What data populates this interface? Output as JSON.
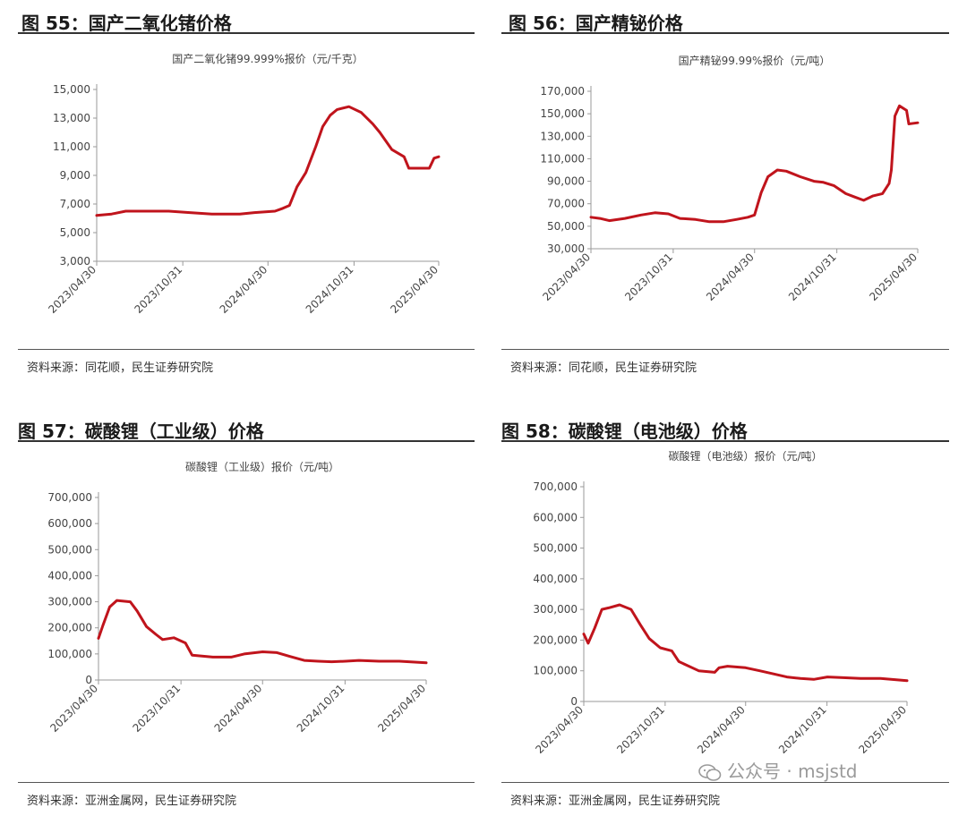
{
  "watermark": {
    "text": "公众号 · msjstd"
  },
  "colors": {
    "line": "#c0141c",
    "axis": "#9a9a9a"
  },
  "panels": [
    {
      "fig_title": "图 55：国产二氧化锗价格",
      "source": "资料来源：同花顺，民生证券研究院",
      "chart_data": {
        "type": "line",
        "title": "国产二氧化锗99.999%报价（元/千克）",
        "xlabel": "",
        "ylabel": "",
        "ylim": [
          3000,
          15000
        ],
        "yticks": [
          3000,
          5000,
          7000,
          9000,
          11000,
          13000,
          15000
        ],
        "ytick_labels": [
          "3,000",
          "5,000",
          "7,000",
          "9,000",
          "11,000",
          "13,000",
          "15,000"
        ],
        "xticks": [
          "2023-04-30",
          "2023-10-31",
          "2024-04-30",
          "2024-10-31",
          "2025-04-30"
        ],
        "xtick_labels": [
          "2023/04/30",
          "2023/10/31",
          "2024/04/30",
          "2024/10/31",
          "2025/04/30"
        ],
        "xlim": [
          "2023-04-30",
          "2025-04-30"
        ],
        "grid": false,
        "series": [
          {
            "x": [
              "2023-04-30",
              "2023-06-01",
              "2023-07-01",
              "2023-08-01",
              "2023-10-01",
              "2023-11-15",
              "2024-01-01",
              "2024-03-01",
              "2024-04-01",
              "2024-05-15",
              "2024-06-01",
              "2024-06-15",
              "2024-07-01",
              "2024-07-20",
              "2024-08-10",
              "2024-08-25",
              "2024-09-10",
              "2024-09-25",
              "2024-10-20",
              "2024-11-15",
              "2024-12-10",
              "2024-12-25",
              "2025-01-20",
              "2025-02-15",
              "2025-02-25",
              "2025-04-10",
              "2025-04-20",
              "2025-04-30"
            ],
            "y": [
              6200,
              6300,
              6500,
              6500,
              6500,
              6400,
              6300,
              6300,
              6400,
              6500,
              6700,
              6900,
              8200,
              9200,
              11000,
              12400,
              13200,
              13600,
              13800,
              13400,
              12600,
              12000,
              10800,
              10300,
              9500,
              9500,
              10200,
              10300
            ]
          }
        ]
      }
    },
    {
      "fig_title": "图 56：国产精铋价格",
      "source": "资料来源：同花顺，民生证券研究院",
      "chart_data": {
        "type": "line",
        "title": "国产精铋99.99%报价（元/吨）",
        "xlabel": "",
        "ylabel": "",
        "ylim": [
          30000,
          170000
        ],
        "yticks": [
          30000,
          50000,
          70000,
          90000,
          110000,
          130000,
          150000,
          170000
        ],
        "ytick_labels": [
          "30,000",
          "50,000",
          "70,000",
          "90,000",
          "110,000",
          "130,000",
          "150,000",
          "170,000"
        ],
        "xticks": [
          "2023-04-30",
          "2023-10-31",
          "2024-04-30",
          "2024-10-31",
          "2025-04-30"
        ],
        "xtick_labels": [
          "2023/04/30",
          "2023/10/31",
          "2024/04/30",
          "2024/10/31",
          "2025/04/30"
        ],
        "xlim": [
          "2023-04-30",
          "2025-04-30"
        ],
        "grid": false,
        "series": [
          {
            "x": [
              "2023-04-30",
              "2023-05-20",
              "2023-06-10",
              "2023-07-15",
              "2023-08-20",
              "2023-09-20",
              "2023-10-20",
              "2023-11-15",
              "2023-12-20",
              "2024-01-20",
              "2024-02-20",
              "2024-03-20",
              "2024-04-15",
              "2024-04-30",
              "2024-05-15",
              "2024-05-30",
              "2024-06-20",
              "2024-07-10",
              "2024-08-10",
              "2024-09-10",
              "2024-10-01",
              "2024-10-25",
              "2024-11-20",
              "2024-12-10",
              "2024-12-30",
              "2025-01-20",
              "2025-02-10",
              "2025-02-25",
              "2025-03-02",
              "2025-03-10",
              "2025-03-20",
              "2025-04-05",
              "2025-04-10",
              "2025-04-30"
            ],
            "y": [
              58000,
              57000,
              55000,
              57000,
              60000,
              62000,
              61000,
              57000,
              56000,
              54000,
              54000,
              56000,
              58000,
              60000,
              80000,
              94000,
              100000,
              99000,
              94000,
              90000,
              89000,
              86000,
              79000,
              76000,
              73000,
              77000,
              79000,
              88000,
              100000,
              148000,
              157000,
              153000,
              141000,
              142000
            ]
          }
        ]
      }
    },
    {
      "fig_title": "图 57：碳酸锂（工业级）价格",
      "source": "资料来源：亚洲金属网，民生证券研究院",
      "chart_data": {
        "type": "line",
        "title": "碳酸锂（工业级）报价（元/吨）",
        "xlabel": "",
        "ylabel": "",
        "ylim": [
          0,
          700000
        ],
        "yticks": [
          0,
          100000,
          200000,
          300000,
          400000,
          500000,
          600000,
          700000
        ],
        "ytick_labels": [
          "0",
          "100,000",
          "200,000",
          "300,000",
          "400,000",
          "500,000",
          "600,000",
          "700,000"
        ],
        "xticks": [
          "2023-04-30",
          "2023-10-31",
          "2024-04-30",
          "2024-10-31",
          "2025-04-30"
        ],
        "xtick_labels": [
          "2023/04/30",
          "2023/10/31",
          "2024/04/30",
          "2024/10/31",
          "2025/04/30"
        ],
        "xlim": [
          "2023-04-30",
          "2025-04-30"
        ],
        "grid": false,
        "series": [
          {
            "x": [
              "2023-04-30",
              "2023-05-10",
              "2023-05-25",
              "2023-06-10",
              "2023-07-10",
              "2023-07-25",
              "2023-08-15",
              "2023-09-05",
              "2023-09-20",
              "2023-10-15",
              "2023-11-10",
              "2023-11-25",
              "2024-01-10",
              "2024-02-20",
              "2024-03-20",
              "2024-04-30",
              "2024-06-01",
              "2024-07-01",
              "2024-08-01",
              "2024-09-01",
              "2024-10-01",
              "2024-11-01",
              "2024-12-01",
              "2025-01-15",
              "2025-03-01",
              "2025-04-30"
            ],
            "y": [
              160000,
              210000,
              280000,
              305000,
              300000,
              265000,
              205000,
              175000,
              155000,
              162000,
              142000,
              95000,
              88000,
              88000,
              100000,
              108000,
              105000,
              90000,
              75000,
              72000,
              70000,
              72000,
              75000,
              72000,
              72000,
              66000
            ]
          }
        ]
      }
    },
    {
      "fig_title": "图 58：碳酸锂（电池级）价格",
      "source": "资料来源：亚洲金属网，民生证券研究院",
      "chart_data": {
        "type": "line",
        "title": "碳酸锂（电池级）报价（元/吨）",
        "xlabel": "",
        "ylabel": "",
        "ylim": [
          0,
          700000
        ],
        "yticks": [
          0,
          100000,
          200000,
          300000,
          400000,
          500000,
          600000,
          700000
        ],
        "ytick_labels": [
          "0",
          "100,000",
          "200,000",
          "300,000",
          "400,000",
          "500,000",
          "600,000",
          "700,000"
        ],
        "xticks": [
          "2023-04-30",
          "2023-10-31",
          "2024-04-30",
          "2024-10-31",
          "2025-04-30"
        ],
        "xtick_labels": [
          "2023/04/30",
          "2023/10/31",
          "2024/04/30",
          "2024/10/31",
          "2025/04/30"
        ],
        "xlim": [
          "2023-04-30",
          "2025-04-30"
        ],
        "grid": false,
        "series": [
          {
            "x": [
              "2023-04-30",
              "2023-05-10",
              "2023-05-25",
              "2023-06-10",
              "2023-06-25",
              "2023-07-20",
              "2023-08-15",
              "2023-09-05",
              "2023-09-25",
              "2023-10-20",
              "2023-11-15",
              "2023-12-01",
              "2024-01-15",
              "2024-02-20",
              "2024-03-01",
              "2024-03-20",
              "2024-04-30",
              "2024-06-01",
              "2024-07-01",
              "2024-08-01",
              "2024-09-01",
              "2024-10-01",
              "2024-11-01",
              "2024-12-01",
              "2025-01-15",
              "2025-03-01",
              "2025-04-30"
            ],
            "y": [
              220000,
              190000,
              240000,
              300000,
              305000,
              315000,
              300000,
              250000,
              205000,
              175000,
              165000,
              130000,
              100000,
              95000,
              110000,
              115000,
              110000,
              100000,
              90000,
              80000,
              75000,
              72000,
              80000,
              78000,
              75000,
              75000,
              68000
            ]
          }
        ]
      }
    }
  ]
}
